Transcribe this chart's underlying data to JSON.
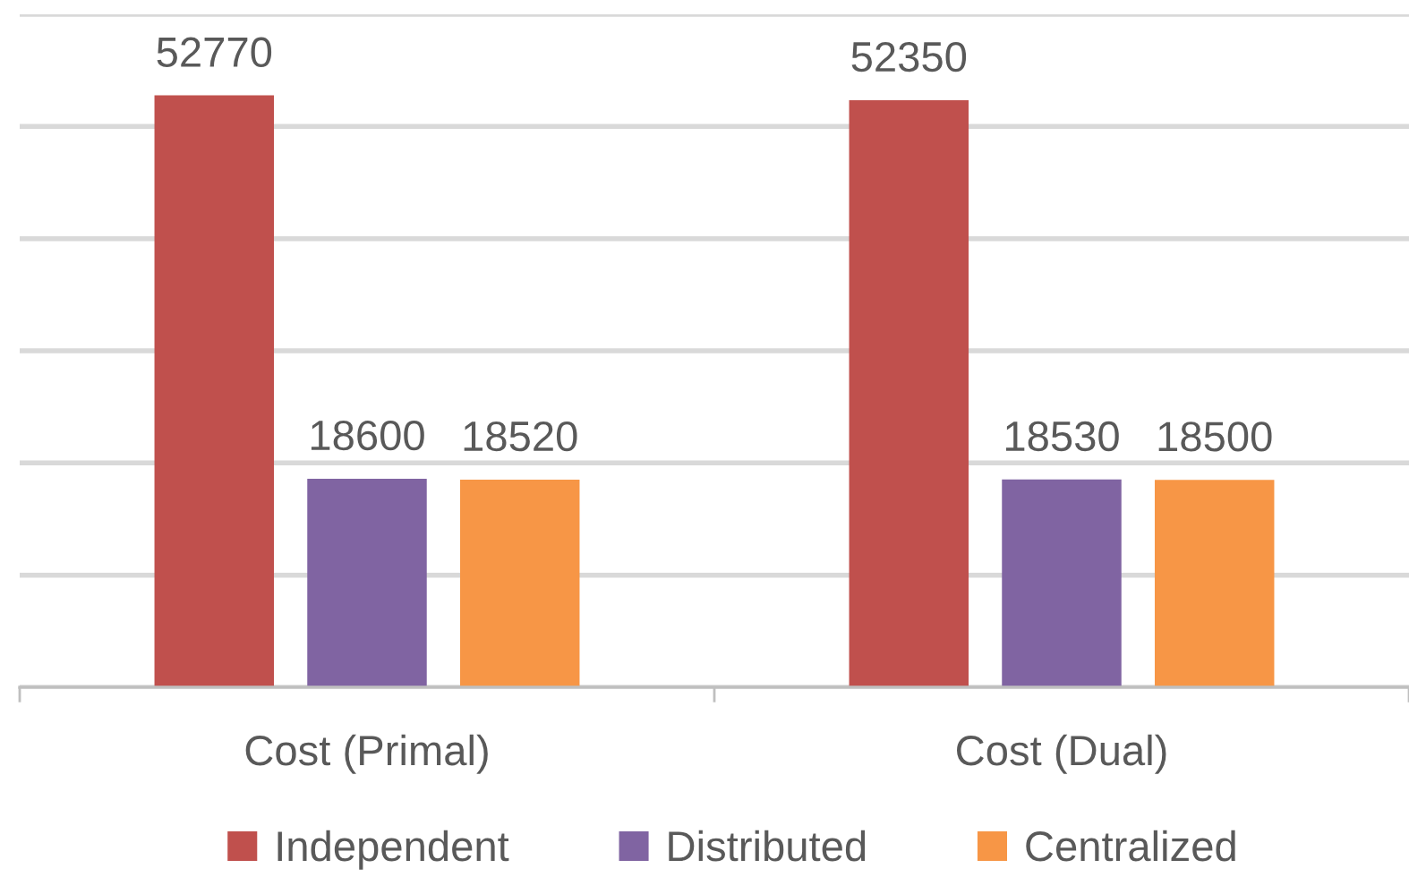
{
  "chart_data": {
    "type": "bar",
    "categories": [
      "Cost (Primal)",
      "Cost (Dual)"
    ],
    "series": [
      {
        "name": "Independent",
        "color": "#c0504d",
        "values": [
          52770,
          52350
        ]
      },
      {
        "name": "Distributed",
        "color": "#8064a2",
        "values": [
          18600,
          18530
        ]
      },
      {
        "name": "Centralized",
        "color": "#f79646",
        "values": [
          18520,
          18500
        ]
      }
    ],
    "ylim": [
      0,
      60000
    ],
    "yticks": [
      {
        "value": 0,
        "label": null
      },
      {
        "value": 10000,
        "label": null
      },
      {
        "value": 20000,
        "label": null
      },
      {
        "value": 30000,
        "label": null
      },
      {
        "value": 40000,
        "label": null
      },
      {
        "value": 50000,
        "label": null
      },
      {
        "value": 60000,
        "label": null
      }
    ],
    "tick_labels": "x",
    "grid": "y",
    "legend": "bottom",
    "data_labels": true
  }
}
